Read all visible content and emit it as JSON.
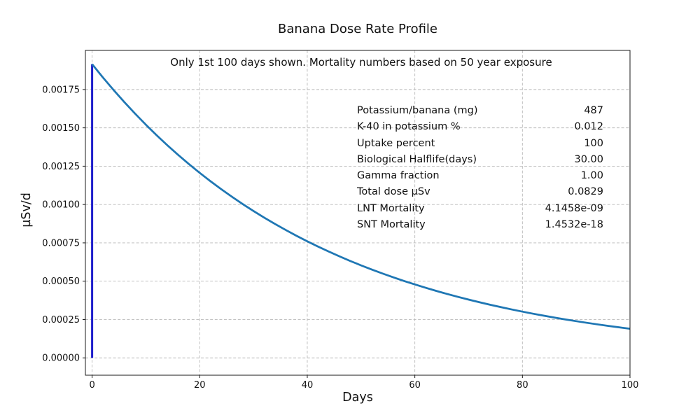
{
  "chart_data": {
    "type": "line",
    "title": "Banana Dose Rate Profile",
    "annotation": "Only 1st 100 days shown. Mortality numbers based on 50 year exposure",
    "xlabel": "Days",
    "ylabel": "µSv/d",
    "xlim": [
      -1.25,
      100
    ],
    "ylim": [
      -0.000113,
      0.002005
    ],
    "grid": true,
    "grid_style": "dashed",
    "xticks": [
      {
        "value": 0,
        "label": "0"
      },
      {
        "value": 20,
        "label": "20"
      },
      {
        "value": 40,
        "label": "40"
      },
      {
        "value": 60,
        "label": "60"
      },
      {
        "value": 80,
        "label": "80"
      },
      {
        "value": 100,
        "label": "100"
      }
    ],
    "yticks": [
      {
        "value": 0.0,
        "label": "0.00000"
      },
      {
        "value": 0.00025,
        "label": "0.00025"
      },
      {
        "value": 0.0005,
        "label": "0.00050"
      },
      {
        "value": 0.00075,
        "label": "0.00075"
      },
      {
        "value": 0.001,
        "label": "0.00100"
      },
      {
        "value": 0.00125,
        "label": "0.00125"
      },
      {
        "value": 0.0015,
        "label": "0.00150"
      },
      {
        "value": 0.00175,
        "label": "0.00175"
      }
    ],
    "series": [
      {
        "name": "initial-uptake-spike",
        "color": "#1e1ecb",
        "width": 3,
        "x": [
          0,
          0
        ],
        "y": [
          0,
          0.0019154
        ]
      },
      {
        "name": "dose-rate-decay",
        "color": "#1f77b4",
        "width": 2.75,
        "x": [
          0,
          2,
          4,
          6,
          8,
          10,
          12,
          14,
          16,
          18,
          20,
          22,
          24,
          26,
          28,
          30,
          32,
          34,
          36,
          38,
          40,
          42,
          44,
          46,
          48,
          50,
          52,
          54,
          56,
          58,
          60,
          62,
          64,
          66,
          68,
          70,
          72,
          74,
          76,
          78,
          80,
          82,
          84,
          86,
          88,
          90,
          92,
          94,
          96,
          98,
          100
        ],
        "y": [
          0.0019154,
          0.0018289,
          0.0017463,
          0.0016674,
          0.0015921,
          0.0015202,
          0.0014515,
          0.0013859,
          0.0013233,
          0.0012635,
          0.0012065,
          0.001152,
          0.0010999,
          0.0010503,
          0.0010028,
          0.0009577,
          0.0009144,
          0.0008731,
          0.0008337,
          0.000796,
          0.0007601,
          0.0007257,
          0.000693,
          0.0006617,
          0.0006318,
          0.0006032,
          0.000576,
          0.00055,
          0.0005251,
          0.0005014,
          0.0004788,
          0.0004572,
          0.0004365,
          0.0004168,
          0.000398,
          0.00038,
          0.0003628,
          0.0003464,
          0.0003308,
          0.0003158,
          0.0003015,
          0.0002879,
          0.0002749,
          0.0002625,
          0.0002506,
          0.0002393,
          0.0002285,
          0.0002182,
          0.0002083,
          0.0001989,
          0.0001899
        ]
      }
    ],
    "table": {
      "rows": [
        {
          "label": "Potassium/banana (mg)",
          "value": "487"
        },
        {
          "label": "K-40 in potassium %",
          "value": "0.012"
        },
        {
          "label": "Uptake percent",
          "value": "100"
        },
        {
          "label": "Biological Halflife(days)",
          "value": "30.00"
        },
        {
          "label": "Gamma fraction",
          "value": "1.00"
        },
        {
          "label": "Total dose µSv",
          "value": "0.0829"
        },
        {
          "label": "LNT Mortality",
          "value": "4.1458e-09"
        },
        {
          "label": "SNT Mortality",
          "value": "1.4532e-18"
        }
      ]
    }
  }
}
